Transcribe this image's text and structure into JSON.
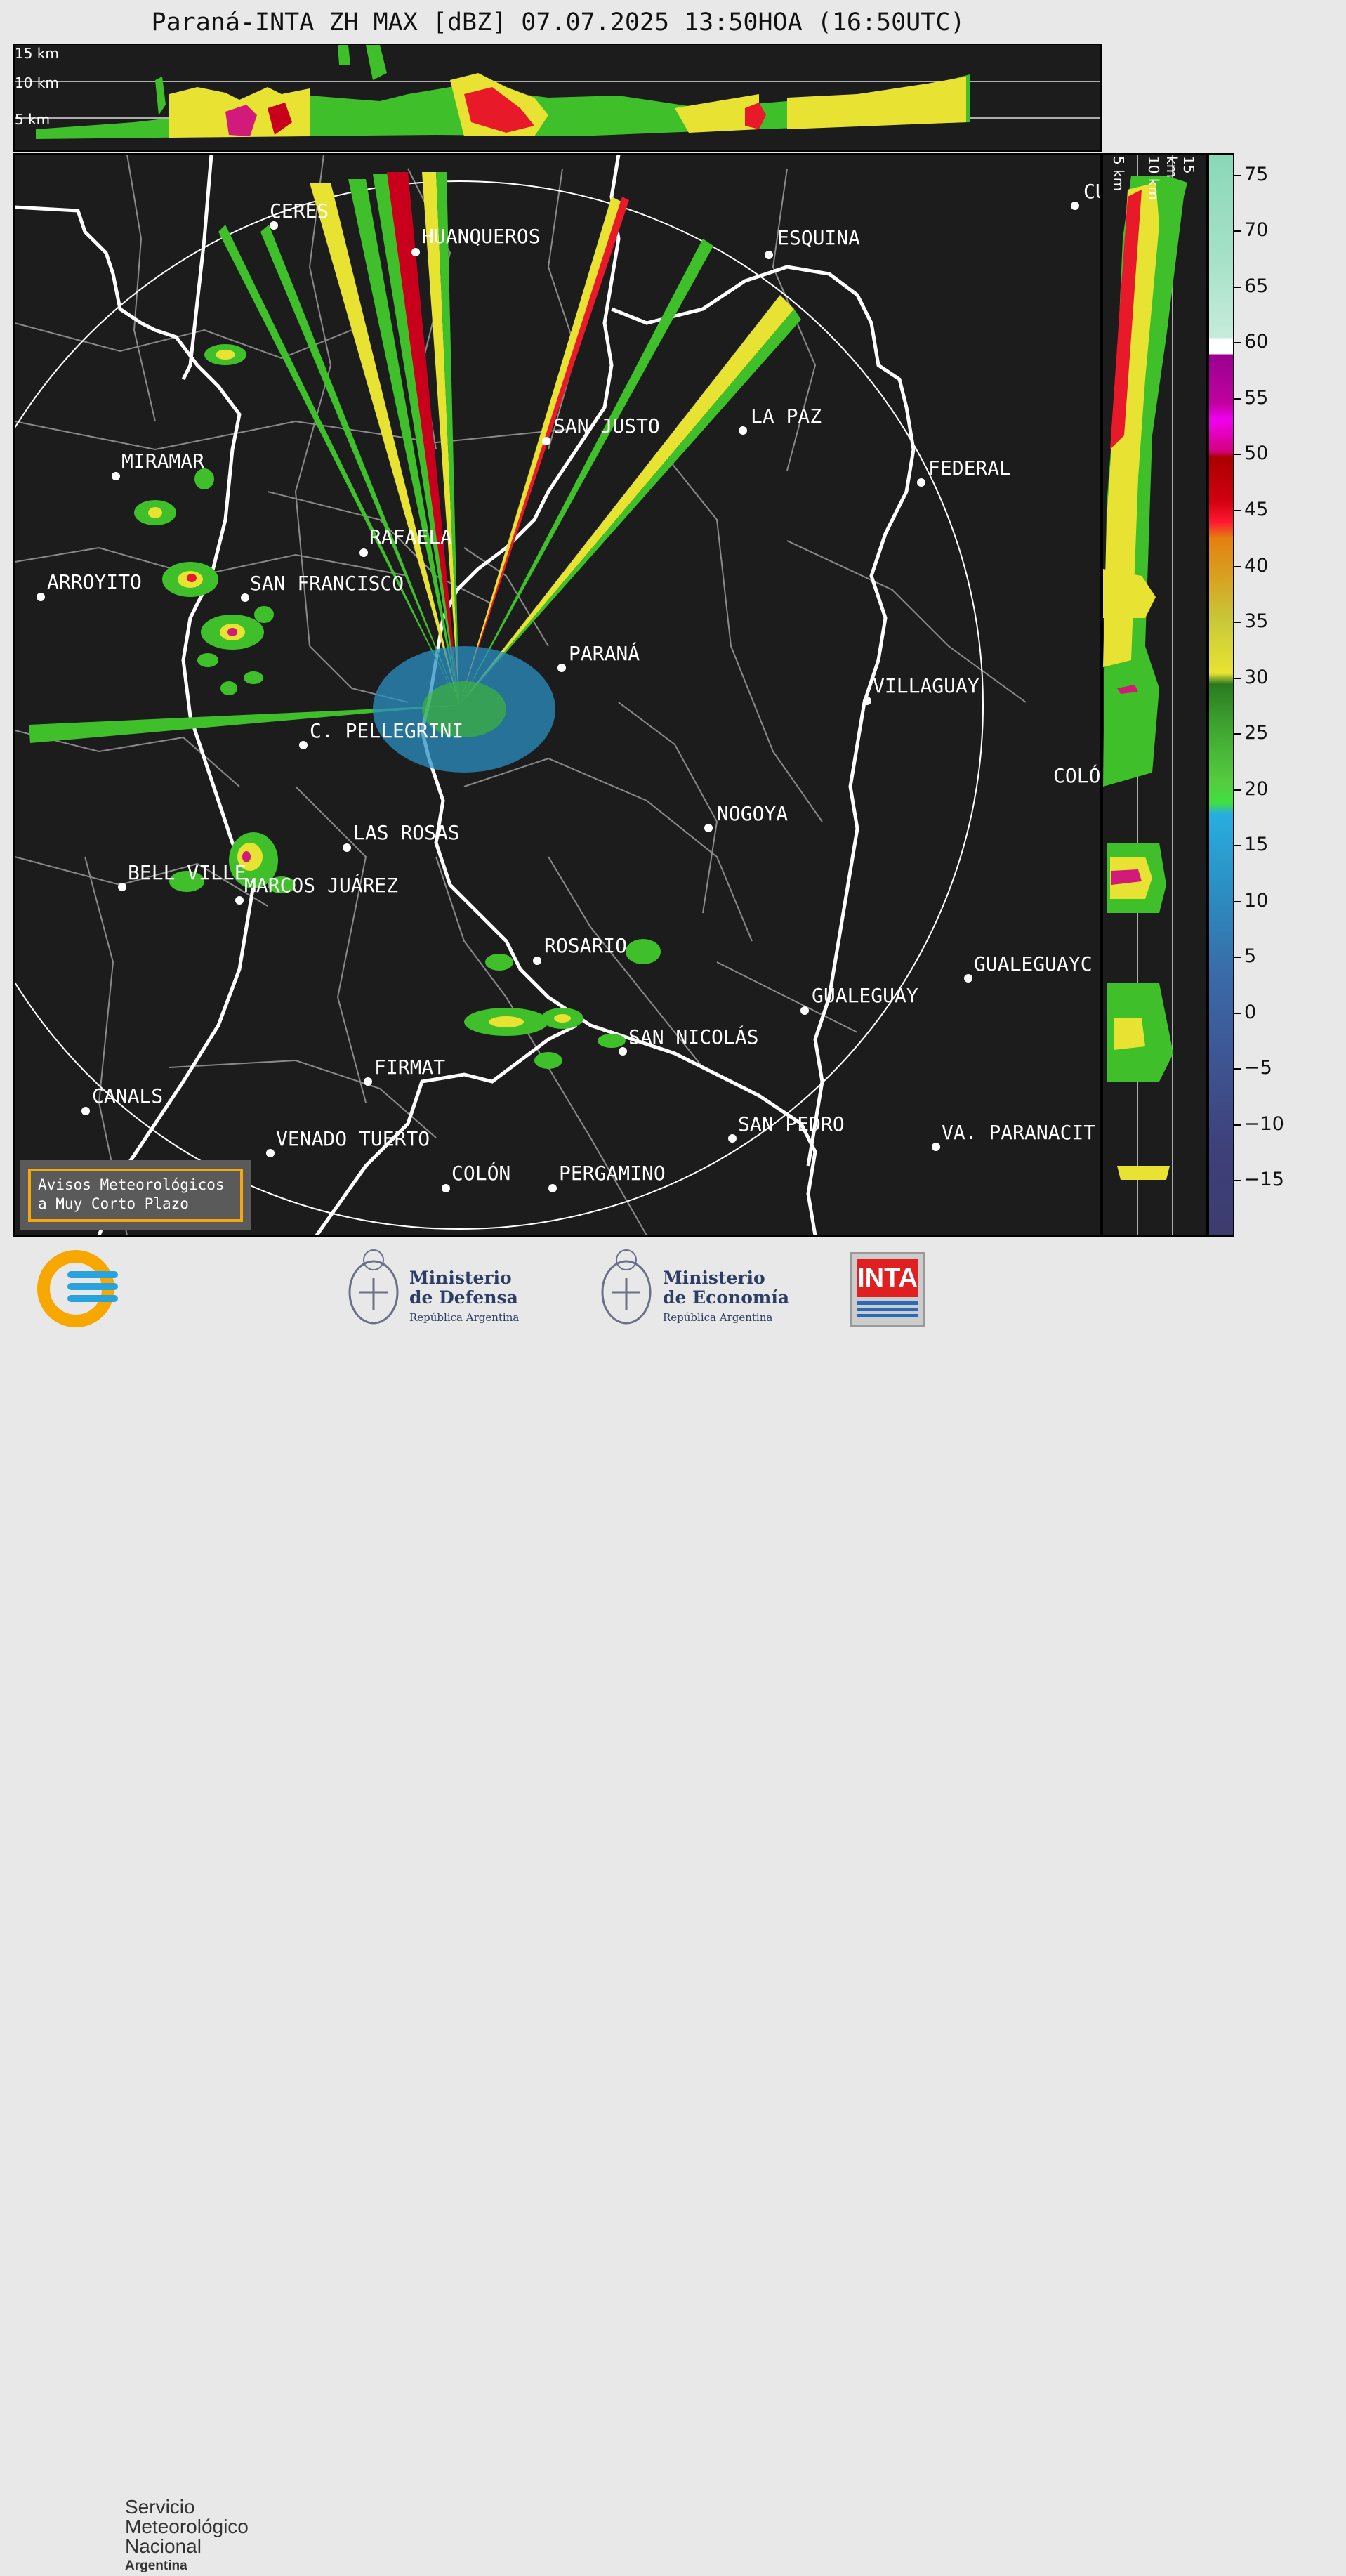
{
  "title": "Paraná-INTA ZH MAX [dBZ] 07.07.2025 13:50HOA (16:50UTC)",
  "height_labels": [
    "15 km",
    "10 km",
    "5 km"
  ],
  "right_height_labels": [
    "5 km",
    "10 km",
    "15 km"
  ],
  "cities": [
    {
      "name": "CERES"
    },
    {
      "name": "HUANQUEROS"
    },
    {
      "name": "ESQUINA"
    },
    {
      "name": "CU"
    },
    {
      "name": "LA PAZ"
    },
    {
      "name": "SAN JUSTO"
    },
    {
      "name": "MIRAMAR"
    },
    {
      "name": "FEDERAL"
    },
    {
      "name": "RAFAELA"
    },
    {
      "name": "ARROYITO"
    },
    {
      "name": "SAN FRANCISCO"
    },
    {
      "name": "PARANÁ"
    },
    {
      "name": "VILLAGUAY"
    },
    {
      "name": "C. PELLEGRINI"
    },
    {
      "name": "COLÓ"
    },
    {
      "name": "NOGOYA"
    },
    {
      "name": "LAS ROSAS"
    },
    {
      "name": "BELL VILLE"
    },
    {
      "name": "MARCOS JUÁREZ"
    },
    {
      "name": "ROSARIO"
    },
    {
      "name": "GUALEGUAYC"
    },
    {
      "name": "GUALEGUAY"
    },
    {
      "name": "SAN NICOLÁS"
    },
    {
      "name": "FIRMAT"
    },
    {
      "name": "CANALS"
    },
    {
      "name": "SAN PEDRO"
    },
    {
      "name": "VA. PARANACIT"
    },
    {
      "name": "VENADO TUERTO"
    },
    {
      "name": "COLÓN"
    },
    {
      "name": "PERGAMINO"
    }
  ],
  "warning": {
    "line1": "Avisos Meteorológicos",
    "line2": "a Muy Corto Plazo"
  },
  "colorbar": {
    "ticks": [
      "75",
      "70",
      "65",
      "60",
      "55",
      "50",
      "45",
      "40",
      "35",
      "30",
      "25",
      "20",
      "15",
      "10",
      "5",
      "0",
      "−5",
      "−10",
      "−15"
    ],
    "min": -20,
    "max": 77
  },
  "logos": {
    "smn": {
      "line1": "Servicio",
      "line2": "Meteorológico",
      "line3": "Nacional",
      "line4": "Argentina"
    },
    "defensa": {
      "line1": "Ministerio",
      "line2": "de Defensa",
      "line3": "República Argentina"
    },
    "economia": {
      "line1": "Ministerio",
      "line2": "de Economía",
      "line3": "República Argentina"
    },
    "inta": {
      "text": "INTA"
    }
  }
}
